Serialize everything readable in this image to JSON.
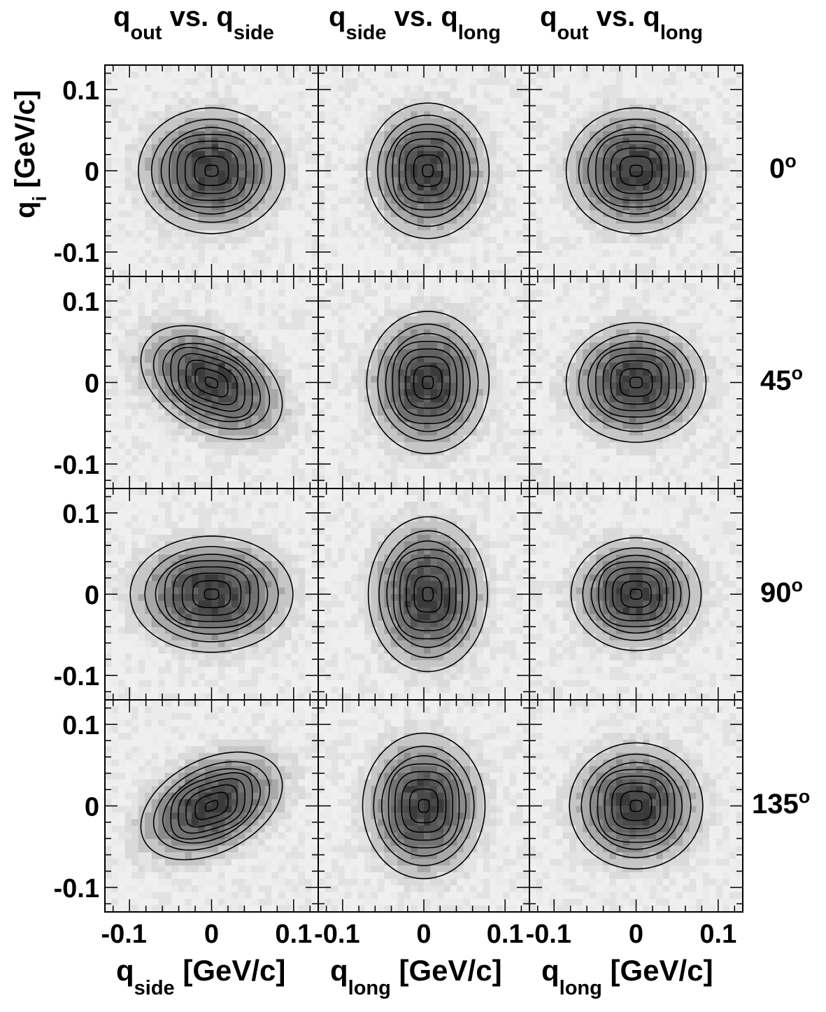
{
  "chart_data": {
    "type": "heatmap",
    "description_grid": "4 rows (angles) x 3 columns (projections) of 2D correlation-function projections: gray-scale histograms with fitted contour lines",
    "column_titles": [
      {
        "a": "q",
        "a_sub": "out",
        "mid": " vs. ",
        "b": "q",
        "b_sub": "side"
      },
      {
        "a": "q",
        "a_sub": "side",
        "mid": " vs. ",
        "b": "q",
        "b_sub": "long"
      },
      {
        "a": "q",
        "a_sub": "out",
        "mid": " vs. ",
        "b": "q",
        "b_sub": "long"
      }
    ],
    "row_labels": [
      {
        "value": "0",
        "sup": "o"
      },
      {
        "value": "45",
        "sup": "o"
      },
      {
        "value": "90",
        "sup": "o"
      },
      {
        "value": "135",
        "sup": "o"
      }
    ],
    "x_axis_labels": [
      {
        "main": "q",
        "sub": "side",
        "unit": " [GeV/c]"
      },
      {
        "main": "q",
        "sub": "long",
        "unit": " [GeV/c]"
      },
      {
        "main": "q",
        "sub": "long",
        "unit": " [GeV/c]"
      }
    ],
    "y_axis_label": {
      "main": "q",
      "sub": "i",
      "unit": " [GeV/c]"
    },
    "x_range": [
      -0.13,
      0.13
    ],
    "y_range": [
      -0.13,
      0.13
    ],
    "x_ticks": [
      -0.1,
      0,
      0.1
    ],
    "x_tick_labels": [
      "-0.1",
      "0",
      "0.1"
    ],
    "y_ticks": [
      0.1,
      0,
      -0.1
    ],
    "y_tick_labels": [
      "0.1",
      "0",
      "-0.1"
    ],
    "contour_count": 7,
    "panels": [
      {
        "row": 0,
        "col": 0,
        "sx": 0.045,
        "sy": 0.039,
        "corr": 0.0,
        "center": [
          0,
          0
        ]
      },
      {
        "row": 0,
        "col": 1,
        "sx": 0.038,
        "sy": 0.042,
        "corr": 0.0,
        "center": [
          0.005,
          0
        ]
      },
      {
        "row": 0,
        "col": 2,
        "sx": 0.043,
        "sy": 0.039,
        "corr": 0.0,
        "center": [
          0,
          0
        ]
      },
      {
        "row": 1,
        "col": 0,
        "sx": 0.047,
        "sy": 0.038,
        "corr": -0.38,
        "center": [
          0,
          0
        ]
      },
      {
        "row": 1,
        "col": 1,
        "sx": 0.038,
        "sy": 0.044,
        "corr": 0.0,
        "center": [
          0.005,
          0
        ]
      },
      {
        "row": 1,
        "col": 2,
        "sx": 0.043,
        "sy": 0.037,
        "corr": 0.0,
        "center": [
          0,
          0
        ]
      },
      {
        "row": 2,
        "col": 0,
        "sx": 0.05,
        "sy": 0.036,
        "corr": 0.0,
        "center": [
          0,
          0
        ]
      },
      {
        "row": 2,
        "col": 1,
        "sx": 0.037,
        "sy": 0.048,
        "corr": 0.0,
        "center": [
          0.005,
          0
        ]
      },
      {
        "row": 2,
        "col": 2,
        "sx": 0.04,
        "sy": 0.035,
        "corr": 0.0,
        "center": [
          0,
          0
        ]
      },
      {
        "row": 3,
        "col": 0,
        "sx": 0.047,
        "sy": 0.036,
        "corr": 0.38,
        "center": [
          0,
          0
        ]
      },
      {
        "row": 3,
        "col": 1,
        "sx": 0.038,
        "sy": 0.045,
        "corr": 0.0,
        "center": [
          0,
          0
        ]
      },
      {
        "row": 3,
        "col": 2,
        "sx": 0.041,
        "sy": 0.039,
        "corr": 0.0,
        "center": [
          0,
          0
        ]
      }
    ],
    "colors": {
      "background_cell": "#eeeeee",
      "light_cell": "#e2e2e2",
      "dark_cell": "#3c3c3c",
      "contour": "#000000",
      "frame": "#000000"
    }
  }
}
